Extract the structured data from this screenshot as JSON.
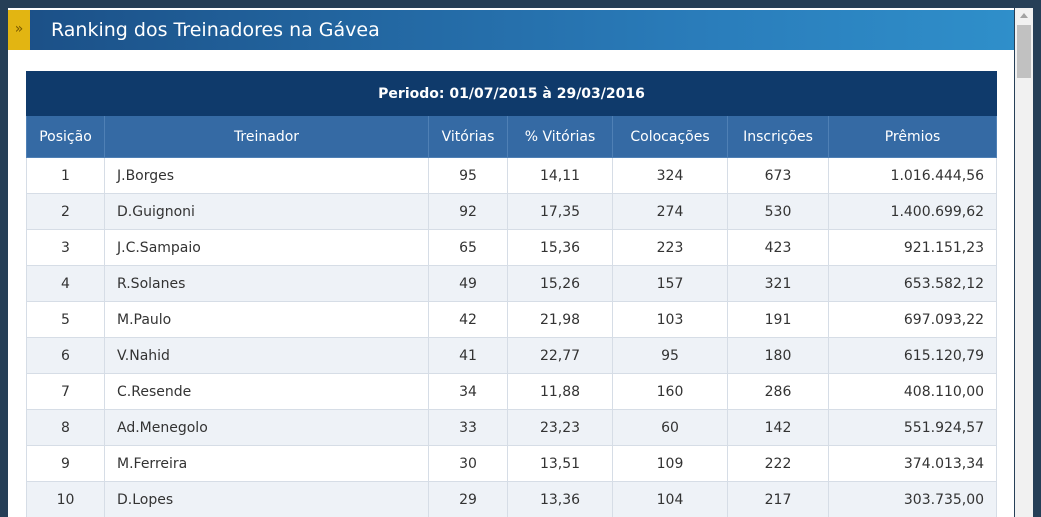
{
  "header": {
    "title": "Ranking dos Treinadores na Gávea"
  },
  "table": {
    "period": "Periodo: 01/07/2015 à 29/03/2016",
    "columns": [
      "Posição",
      "Treinador",
      "Vitórias",
      "% Vitórias",
      "Colocações",
      "Inscrições",
      "Prêmios"
    ],
    "rows": [
      [
        "1",
        "J.Borges",
        "95",
        "14,11",
        "324",
        "673",
        "1.016.444,56"
      ],
      [
        "2",
        "D.Guignoni",
        "92",
        "17,35",
        "274",
        "530",
        "1.400.699,62"
      ],
      [
        "3",
        "J.C.Sampaio",
        "65",
        "15,36",
        "223",
        "423",
        "921.151,23"
      ],
      [
        "4",
        "R.Solanes",
        "49",
        "15,26",
        "157",
        "321",
        "653.582,12"
      ],
      [
        "5",
        "M.Paulo",
        "42",
        "21,98",
        "103",
        "191",
        "697.093,22"
      ],
      [
        "6",
        "V.Nahid",
        "41",
        "22,77",
        "95",
        "180",
        "615.120,79"
      ],
      [
        "7",
        "C.Resende",
        "34",
        "11,88",
        "160",
        "286",
        "408.110,00"
      ],
      [
        "8",
        "Ad.Menegolo",
        "33",
        "23,23",
        "60",
        "142",
        "551.924,57"
      ],
      [
        "9",
        "M.Ferreira",
        "30",
        "13,51",
        "109",
        "222",
        "374.013,34"
      ],
      [
        "10",
        "D.Lopes",
        "29",
        "13,36",
        "104",
        "217",
        "303.735,00"
      ]
    ]
  }
}
